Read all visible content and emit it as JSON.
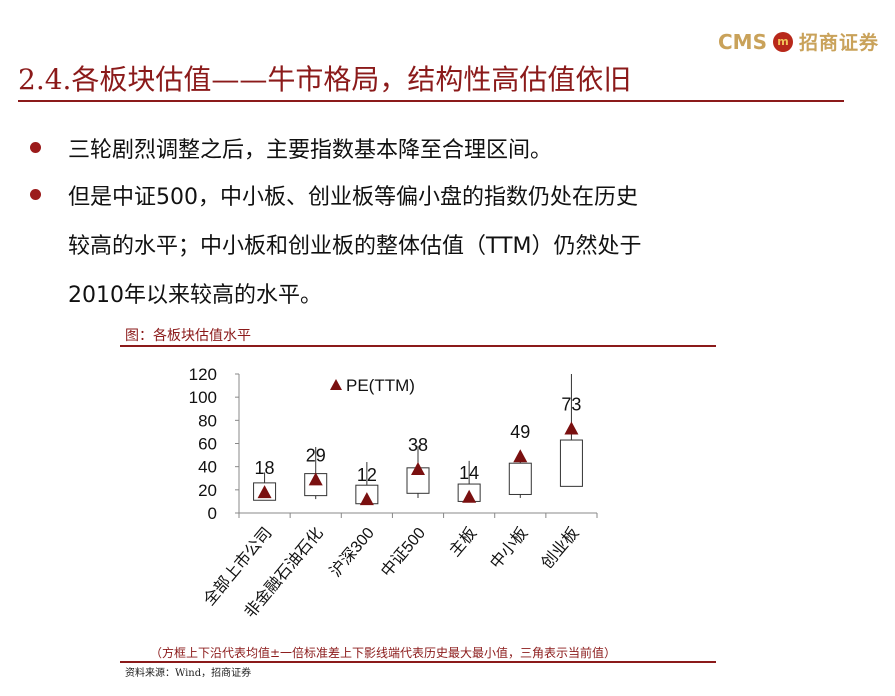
{
  "logo": {
    "brand_en": "CMS",
    "brand_mark": "m",
    "brand_cn": "招商证券"
  },
  "title": "2.4.各板块估值——牛市格局，结构性高估值依旧",
  "bullets": [
    {
      "lines": [
        "三轮剧烈调整之后，主要指数基本降至合理区间。"
      ]
    },
    {
      "lines": [
        "但是中证500，中小板、创业板等偏小盘的指数仍处在历史",
        "较高的水平；中小板和创业板的整体估值（TTM）仍然处于",
        "2010年以来较高的水平。"
      ]
    }
  ],
  "figure": {
    "caption": "图：各板块估值水平",
    "note": "（方框上下沿代表均值±一倍标准差上下影线端代表历史最大最小值，三角表示当前值）",
    "source": "资料来源：Wind，招商证券"
  },
  "colors": {
    "accent": "#8b1a1a",
    "marker": "#7a1010",
    "logo": "#c9a25a"
  },
  "chart_data": {
    "type": "box",
    "legend": "PE(TTM)",
    "legend_position": "top-left",
    "categories": [
      "全部上市公司",
      "非金融石油石化",
      "沪深300",
      "中证500",
      "主板",
      "中小板",
      "创业板"
    ],
    "current": [
      18,
      29,
      12,
      38,
      14,
      49,
      73
    ],
    "box_low": [
      11,
      15,
      8,
      17,
      10,
      16,
      23
    ],
    "box_high": [
      26,
      34,
      24,
      39,
      25,
      43,
      63
    ],
    "whisker_min": [
      11,
      12,
      8,
      13,
      10,
      13,
      23
    ],
    "whisker_max": [
      35,
      57,
      44,
      58,
      45,
      50,
      120
    ],
    "ylim": [
      0,
      120
    ],
    "yticks": [
      0,
      20,
      40,
      60,
      80,
      100,
      120
    ]
  }
}
